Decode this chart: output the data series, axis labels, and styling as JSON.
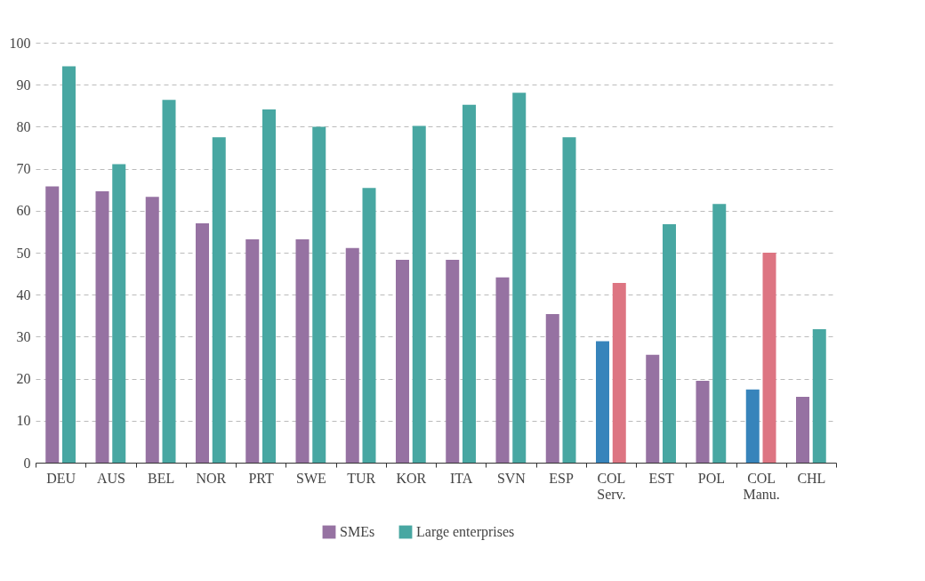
{
  "chart_data": {
    "type": "bar",
    "categories": [
      "DEU",
      "AUS",
      "BEL",
      "NOR",
      "PRT",
      "SWE",
      "TUR",
      "KOR",
      "ITA",
      "SVN",
      "ESP",
      "COL Serv.",
      "EST",
      "POL",
      "COL Manu.",
      "CHL"
    ],
    "series": [
      {
        "name": "SMEs",
        "color": "#9672a2",
        "colors": [
          "#9672a2",
          "#9672a2",
          "#9672a2",
          "#9672a2",
          "#9672a2",
          "#9672a2",
          "#9672a2",
          "#9672a2",
          "#9672a2",
          "#9672a2",
          "#9672a2",
          "#3784bb",
          "#9672a2",
          "#9672a2",
          "#3784bb",
          "#9672a2"
        ],
        "values": [
          65.8,
          64.6,
          63.3,
          57.0,
          53.2,
          53.2,
          51.1,
          48.3,
          48.3,
          44.1,
          35.4,
          28.9,
          25.7,
          19.5,
          17.4,
          15.7
        ]
      },
      {
        "name": "Large enterprises",
        "color": "#48a7a2",
        "colors": [
          "#48a7a2",
          "#48a7a2",
          "#48a7a2",
          "#48a7a2",
          "#48a7a2",
          "#48a7a2",
          "#48a7a2",
          "#48a7a2",
          "#48a7a2",
          "#48a7a2",
          "#48a7a2",
          "#dd7582",
          "#48a7a2",
          "#48a7a2",
          "#dd7582",
          "#48a7a2"
        ],
        "values": [
          94.4,
          71.1,
          86.4,
          77.5,
          84.1,
          80.0,
          65.4,
          80.2,
          85.2,
          88.1,
          77.5,
          42.8,
          56.8,
          61.6,
          50.0,
          31.8
        ]
      }
    ],
    "ylim": [
      0,
      100
    ],
    "yticks": [
      0,
      10,
      20,
      30,
      40,
      50,
      60,
      70,
      80,
      90,
      100
    ],
    "grid": "y",
    "legend": "bottom"
  }
}
